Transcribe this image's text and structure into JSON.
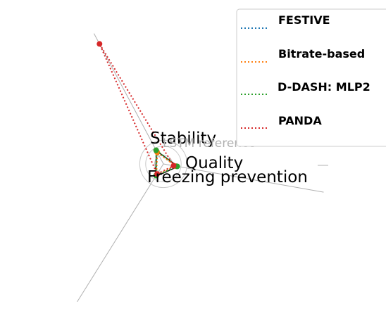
{
  "chart_data": {
    "type": "radar",
    "title": "",
    "axes": [
      "Quality",
      "Stability",
      "Freezing prevention"
    ],
    "reference": {
      "name": "LSTM reference",
      "values": [
        1,
        1,
        1
      ]
    },
    "series": [
      {
        "name": "FESTIVE",
        "color": "#1f77b4",
        "line_style": "dotted",
        "values": [
          0.9,
          0.95,
          0.92
        ]
      },
      {
        "name": "Bitrate-based",
        "color": "#ff7f0e",
        "line_style": "dotted",
        "values": [
          0.85,
          0.88,
          0.9
        ]
      },
      {
        "name": "D-DASH: MLP2",
        "color": "#2ca02c",
        "line_style": "dotted",
        "values": [
          0.95,
          1.05,
          0.93
        ]
      },
      {
        "name": "PANDA",
        "color": "#d62728",
        "line_style": "dotted",
        "values": [
          0.7,
          9.2,
          0.8
        ]
      }
    ],
    "legend": {
      "position": "top-right"
    },
    "grid": true
  }
}
